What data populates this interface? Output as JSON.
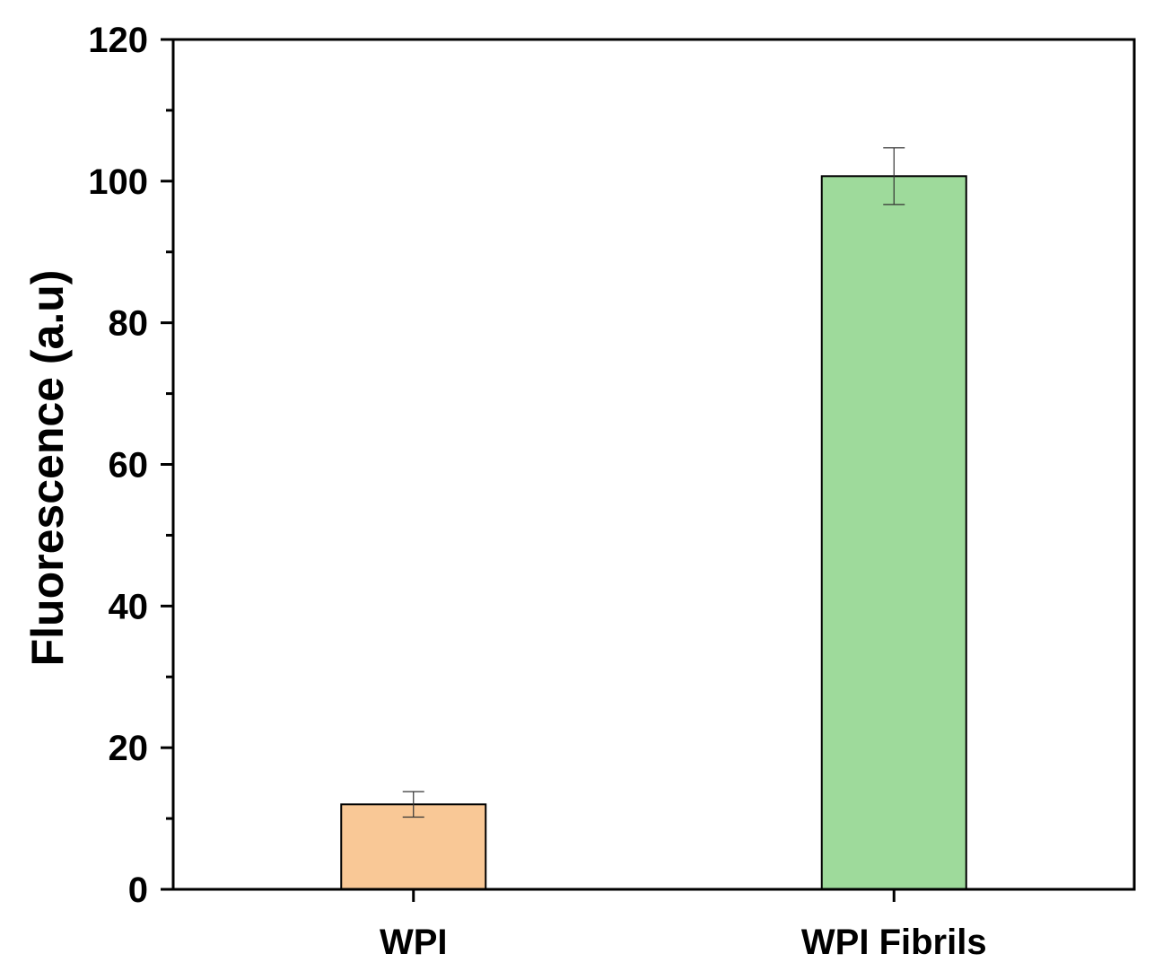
{
  "chart_data": {
    "type": "bar",
    "title": "",
    "xlabel": "",
    "ylabel": "Fluorescence (a.u)",
    "categories": [
      "WPI",
      "WPI Fibrils"
    ],
    "values": [
      12,
      100.7
    ],
    "errors": [
      1.8,
      4.0
    ],
    "bar_colors": [
      "#F9C896",
      "#9EDA9B"
    ],
    "ylim": [
      0,
      120
    ],
    "yticks": [
      0,
      20,
      40,
      60,
      80,
      100,
      120
    ],
    "ytick_labels": [
      "0",
      "20",
      "40",
      "60",
      "80",
      "100",
      "120"
    ],
    "grid": false,
    "legend": "none"
  }
}
